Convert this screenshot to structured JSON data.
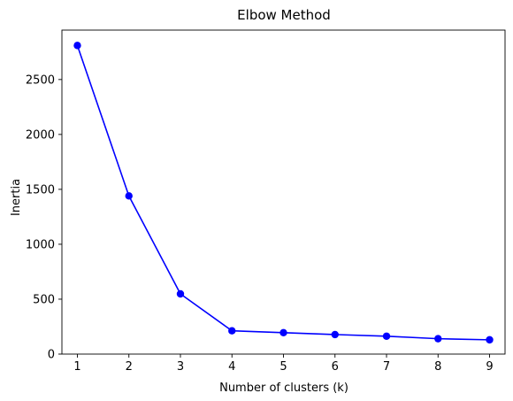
{
  "chart_data": {
    "type": "line",
    "title": "Elbow Method",
    "xlabel": "Number of clusters (k)",
    "ylabel": "Inertia",
    "x": [
      1,
      2,
      3,
      4,
      5,
      6,
      7,
      8,
      9
    ],
    "series": [
      {
        "values": [
          2810,
          1440,
          548,
          212,
          195,
          178,
          163,
          140,
          130
        ],
        "color": "#0000ff",
        "marker": "circle"
      }
    ],
    "xlim": [
      0.7,
      9.3
    ],
    "ylim": [
      0,
      2950
    ],
    "xticks": [
      1,
      2,
      3,
      4,
      5,
      6,
      7,
      8,
      9
    ],
    "yticks": [
      0,
      500,
      1000,
      1500,
      2000,
      2500
    ],
    "grid": false,
    "legend": "none"
  }
}
